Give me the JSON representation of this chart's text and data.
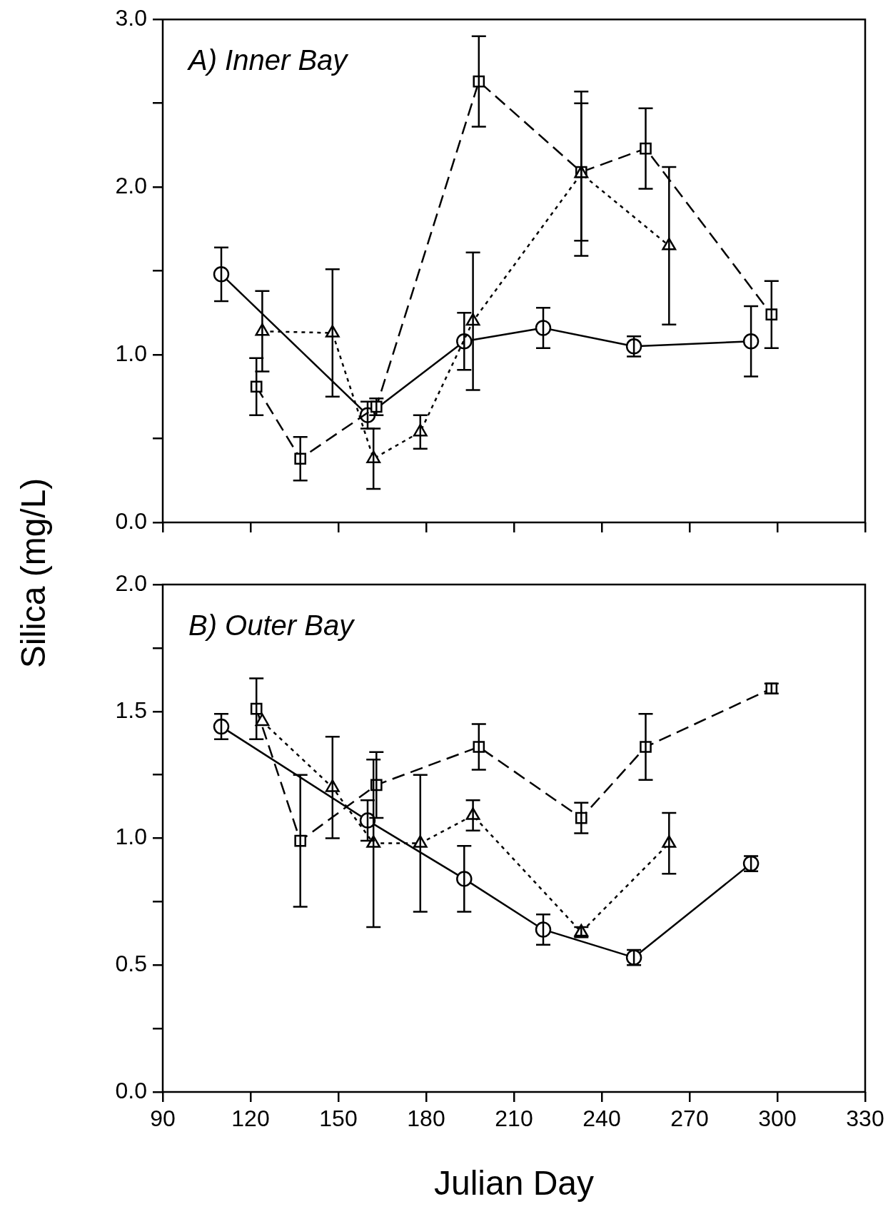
{
  "chart_data": [
    {
      "type": "line",
      "ylabel": "Silica (mg/L)",
      "annotations": [
        "A) Inner Bay"
      ],
      "xlim": [
        90,
        330
      ],
      "xticks": [
        90,
        120,
        150,
        180,
        210,
        240,
        270,
        300,
        330
      ],
      "ylim": [
        0,
        3
      ],
      "yticks": [
        {
          "value": 0,
          "label": "0.0"
        },
        {
          "value": 0.5,
          "label": null
        },
        {
          "value": 1,
          "label": "1.0"
        },
        {
          "value": 1.5,
          "label": null
        },
        {
          "value": 2,
          "label": "2.0"
        },
        {
          "value": 2.5,
          "label": null
        },
        {
          "value": 3,
          "label": "3.0"
        }
      ],
      "tick_labels": "y",
      "grid": false,
      "legend": false,
      "series": [
        {
          "color": "#000000",
          "marker": "circle",
          "line_style": "solid",
          "x": [
            110,
            160,
            193,
            220,
            251,
            291
          ],
          "values": [
            1.48,
            0.64,
            1.08,
            1.16,
            1.05,
            1.08
          ],
          "errors": [
            0.16,
            0.08,
            0.17,
            0.12,
            0.06,
            0.21
          ]
        },
        {
          "color": "#000000",
          "marker": "square",
          "line_style": "dashed",
          "x": [
            122,
            137,
            163,
            198,
            233,
            255,
            298
          ],
          "values": [
            0.81,
            0.38,
            0.69,
            2.63,
            2.09,
            2.23,
            1.24
          ],
          "errors": [
            0.17,
            0.13,
            0.05,
            0.27,
            0.41,
            0.24,
            0.2
          ]
        },
        {
          "color": "#000000",
          "marker": "triangle",
          "line_style": "dotted",
          "x": [
            124,
            148,
            162,
            178,
            196,
            233,
            263
          ],
          "values": [
            1.14,
            1.13,
            0.38,
            0.54,
            1.2,
            2.08,
            1.65
          ],
          "errors": [
            0.24,
            0.38,
            0.18,
            0.1,
            0.41,
            0.49,
            0.47
          ]
        }
      ]
    },
    {
      "type": "line",
      "xlabel": "Julian Day",
      "annotations": [
        "B) Outer Bay"
      ],
      "xlim": [
        90,
        330
      ],
      "xticks": [
        90,
        120,
        150,
        180,
        210,
        240,
        270,
        300,
        330
      ],
      "ylim": [
        0,
        2
      ],
      "yticks": [
        {
          "value": 0,
          "label": "0.0"
        },
        {
          "value": 0.25,
          "label": null
        },
        {
          "value": 0.5,
          "label": "0.5"
        },
        {
          "value": 0.75,
          "label": null
        },
        {
          "value": 1,
          "label": "1.0"
        },
        {
          "value": 1.25,
          "label": null
        },
        {
          "value": 1.5,
          "label": "1.5"
        },
        {
          "value": 1.75,
          "label": null
        },
        {
          "value": 2,
          "label": "2.0"
        }
      ],
      "grid": false,
      "legend": false,
      "series": [
        {
          "color": "#000000",
          "marker": "circle",
          "line_style": "solid",
          "x": [
            110,
            160,
            193,
            220,
            251,
            291
          ],
          "values": [
            1.44,
            1.07,
            0.84,
            0.64,
            0.53,
            0.9
          ],
          "errors": [
            0.05,
            0.08,
            0.13,
            0.06,
            0.03,
            0.03
          ]
        },
        {
          "color": "#000000",
          "marker": "square",
          "line_style": "dashed",
          "x": [
            122,
            137,
            163,
            198,
            233,
            255,
            298
          ],
          "values": [
            1.51,
            0.99,
            1.21,
            1.36,
            1.08,
            1.36,
            1.59
          ],
          "errors": [
            0.12,
            0.26,
            0.13,
            0.09,
            0.06,
            0.13,
            0.02
          ]
        },
        {
          "color": "#000000",
          "marker": "triangle",
          "line_style": "dotted",
          "x": [
            124,
            148,
            162,
            178,
            196,
            233,
            263
          ],
          "values": [
            1.46,
            1.2,
            0.98,
            0.98,
            1.09,
            0.63,
            0.98
          ],
          "errors": [
            null,
            0.2,
            0.33,
            0.27,
            0.06,
            0.02,
            0.12
          ]
        }
      ]
    }
  ]
}
